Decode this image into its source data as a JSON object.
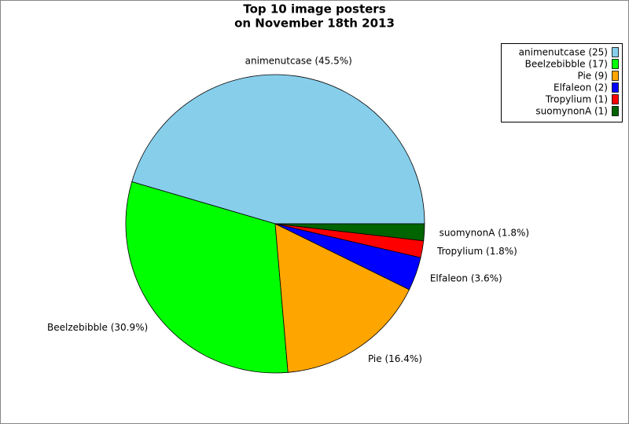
{
  "chart_data": {
    "type": "pie",
    "title": [
      "Top 10 image posters",
      "on November 18th 2013"
    ],
    "values": [
      25,
      17,
      9,
      2,
      1,
      1
    ],
    "value_labels": [
      "animenutcase (45.5%)",
      "Beelzebibble (30.9%)",
      "Pie (16.4%)",
      "Elfaleon (3.6%)",
      "Tropylium (1.8%)",
      "suomynonA (1.8%)"
    ],
    "legend_labels": [
      "animenutcase (25)",
      "Beelzebibble (17)",
      "Pie (9)",
      "Elfaleon (2)",
      "Tropylium (1)",
      "suomynonA (1)"
    ],
    "colors": [
      "#87ceeb",
      "#00ff00",
      "#ffa500",
      "#0000ff",
      "#ff0000",
      "#006400"
    ],
    "legend": "upper right"
  }
}
